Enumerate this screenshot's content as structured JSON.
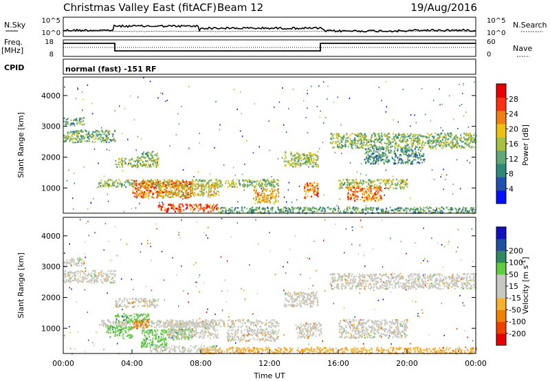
{
  "header": {
    "title": "Christmas Valley East (fitACF)",
    "beam": "Beam 12",
    "date": "19/Aug/2016"
  },
  "top_panels": {
    "nsky_label": "N.Sky",
    "nsky_ticks": [
      "10^5",
      "10^0"
    ],
    "nsearch_label": "N.Search",
    "nsearch_ticks": [
      "10^5",
      "10^0"
    ],
    "freq_label_line1": "Freq.",
    "freq_label_line2": "[MHz]",
    "freq_ticks": [
      "18",
      "8"
    ],
    "nave_label": "Nave",
    "nave_ticks": [
      "60",
      "0"
    ],
    "cpid_label": "CPID",
    "cpid_text": "normal (fast) -151 RF"
  },
  "colors": {
    "power_scale": [
      "#0010ff",
      "#2050b0",
      "#2e8a78",
      "#5fa878",
      "#a8c040",
      "#f0c010",
      "#f08010",
      "#ff3010",
      "#e80000"
    ],
    "velocity_scale": [
      "#e80000",
      "#f04000",
      "#f08000",
      "#f8b030",
      "#c8c8c0",
      "#c8c8c0",
      "#60cc40",
      "#2e8a60",
      "#2050a0",
      "#1010c0"
    ]
  },
  "chart_data": [
    {
      "type": "heatmap",
      "name": "power-panel",
      "xlabel": "",
      "ylabel": "Slant Range [km]",
      "xlim": [
        0,
        24
      ],
      "ylim": [
        180,
        4600
      ],
      "yticks": [
        1000,
        2000,
        3000,
        4000
      ],
      "colorbar_label": "Power [dB]",
      "colorbar_ticks": [
        "4",
        "8",
        "12",
        "16",
        "20",
        "24",
        "28"
      ],
      "colorbar_range": [
        0,
        32
      ],
      "regions": [
        {
          "x": [
            0.0,
            3.0
          ],
          "y": [
            2500,
            2900
          ],
          "level": 13
        },
        {
          "x": [
            0.0,
            1.2
          ],
          "y": [
            3050,
            3300
          ],
          "level": 12
        },
        {
          "x": [
            3.0,
            5.5
          ],
          "y": [
            1700,
            2000
          ],
          "level": 15
        },
        {
          "x": [
            4.5,
            5.5
          ],
          "y": [
            2000,
            2200
          ],
          "level": 12
        },
        {
          "x": [
            2.0,
            12.5
          ],
          "y": [
            1050,
            1300
          ],
          "level": 15
        },
        {
          "x": [
            4.0,
            7.5
          ],
          "y": [
            700,
            1250
          ],
          "level": 24
        },
        {
          "x": [
            5.5,
            9.0
          ],
          "y": [
            750,
            1150
          ],
          "level": 18
        },
        {
          "x": [
            5.5,
            9.0
          ],
          "y": [
            250,
            500
          ],
          "level": 26
        },
        {
          "x": [
            9.0,
            24.0
          ],
          "y": [
            200,
            400
          ],
          "level": 12
        },
        {
          "x": [
            12.8,
            14.8
          ],
          "y": [
            1700,
            2200
          ],
          "level": 15
        },
        {
          "x": [
            14.0,
            14.8
          ],
          "y": [
            700,
            1200
          ],
          "level": 24
        },
        {
          "x": [
            11.0,
            12.5
          ],
          "y": [
            550,
            1000
          ],
          "level": 20
        },
        {
          "x": [
            16.0,
            20.0
          ],
          "y": [
            1000,
            1300
          ],
          "level": 16
        },
        {
          "x": [
            16.5,
            18.5
          ],
          "y": [
            600,
            1050
          ],
          "level": 24
        },
        {
          "x": [
            15.5,
            24.0
          ],
          "y": [
            2300,
            2800
          ],
          "level": 14
        },
        {
          "x": [
            17.5,
            21.0
          ],
          "y": [
            1800,
            2300
          ],
          "level": 10
        }
      ]
    },
    {
      "type": "heatmap",
      "name": "velocity-panel",
      "xlabel": "Time UT",
      "ylabel": "Slant Range [km]",
      "xlim": [
        0,
        24
      ],
      "ylim": [
        180,
        4600
      ],
      "yticks": [
        1000,
        2000,
        3000,
        4000
      ],
      "xticks": [
        "00:00",
        "04:00",
        "08:00",
        "12:00",
        "16:00",
        "20:00",
        "00:00"
      ],
      "colorbar_label": "Velocity [m s",
      "colorbar_label_sup": "-1",
      "colorbar_label_end": "]",
      "colorbar_ticks": [
        "-200",
        "-100",
        "-50",
        "-15",
        "15",
        "50",
        "100",
        "200"
      ],
      "regions": [
        {
          "x": [
            0.0,
            3.0
          ],
          "y": [
            2500,
            2900
          ],
          "level": 4
        },
        {
          "x": [
            0.0,
            1.2
          ],
          "y": [
            3050,
            3300
          ],
          "level": 4
        },
        {
          "x": [
            3.0,
            5.5
          ],
          "y": [
            1700,
            2000
          ],
          "level": 4
        },
        {
          "x": [
            2.0,
            12.5
          ],
          "y": [
            1050,
            1300
          ],
          "level": 4
        },
        {
          "x": [
            2.5,
            4.0
          ],
          "y": [
            700,
            1100
          ],
          "level": 6
        },
        {
          "x": [
            4.5,
            7.5
          ],
          "y": [
            650,
            1000
          ],
          "level": 6
        },
        {
          "x": [
            3.0,
            5.0
          ],
          "y": [
            1200,
            1500
          ],
          "level": 6
        },
        {
          "x": [
            4.5,
            6.0
          ],
          "y": [
            400,
            700
          ],
          "level": 6
        },
        {
          "x": [
            4.0,
            5.0
          ],
          "y": [
            1000,
            1300
          ],
          "level": 2
        },
        {
          "x": [
            6.0,
            9.0
          ],
          "y": [
            700,
            1200
          ],
          "level": 4
        },
        {
          "x": [
            8.0,
            24.0
          ],
          "y": [
            200,
            400
          ],
          "level": 3
        },
        {
          "x": [
            5.0,
            9.0
          ],
          "y": [
            250,
            450
          ],
          "level": 5
        },
        {
          "x": [
            12.8,
            14.8
          ],
          "y": [
            1700,
            2200
          ],
          "level": 4
        },
        {
          "x": [
            13.5,
            15.0
          ],
          "y": [
            700,
            1200
          ],
          "level": 4
        },
        {
          "x": [
            16.0,
            20.0
          ],
          "y": [
            700,
            1300
          ],
          "level": 4
        },
        {
          "x": [
            15.5,
            24.0
          ],
          "y": [
            2300,
            2800
          ],
          "level": 4
        },
        {
          "x": [
            9.5,
            12.5
          ],
          "y": [
            600,
            1000
          ],
          "level": 4
        }
      ]
    }
  ]
}
